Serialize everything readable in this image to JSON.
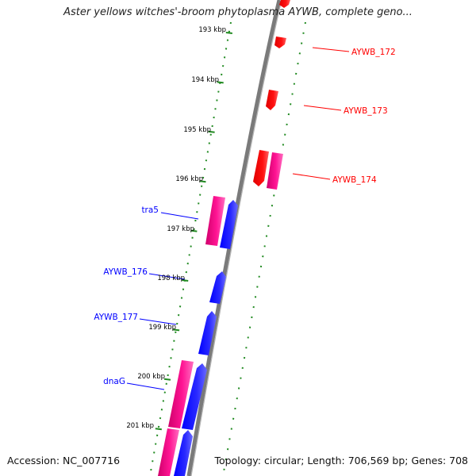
{
  "title": "Aster yellows witches'-broom phytoplasma AYWB, complete geno...",
  "accession": "Accession: NC_007716",
  "summary": "Topology: circular; Length: 706,569 bp; Genes: 708",
  "colors": {
    "reverse_strand": "#0000ff",
    "forward_strand": "#ff0000",
    "cds_pink": "#ff1493",
    "tick": "#228b22",
    "backbone": "#808080"
  },
  "ticks": [
    {
      "label": "193 kbp"
    },
    {
      "label": "194 kbp"
    },
    {
      "label": "195 kbp"
    },
    {
      "label": "196 kbp"
    },
    {
      "label": "197 kbp"
    },
    {
      "label": "198 kbp"
    },
    {
      "label": "199 kbp"
    },
    {
      "label": "200 kbp"
    },
    {
      "label": "201 kbp"
    }
  ],
  "gene_labels": [
    {
      "name": "AYWB_172",
      "strand": "forward"
    },
    {
      "name": "AYWB_173",
      "strand": "forward"
    },
    {
      "name": "AYWB_174",
      "strand": "forward"
    },
    {
      "name": "tra5",
      "strand": "reverse"
    },
    {
      "name": "AYWB_176",
      "strand": "reverse"
    },
    {
      "name": "AYWB_177",
      "strand": "reverse"
    },
    {
      "name": "dnaG",
      "strand": "reverse"
    }
  ]
}
